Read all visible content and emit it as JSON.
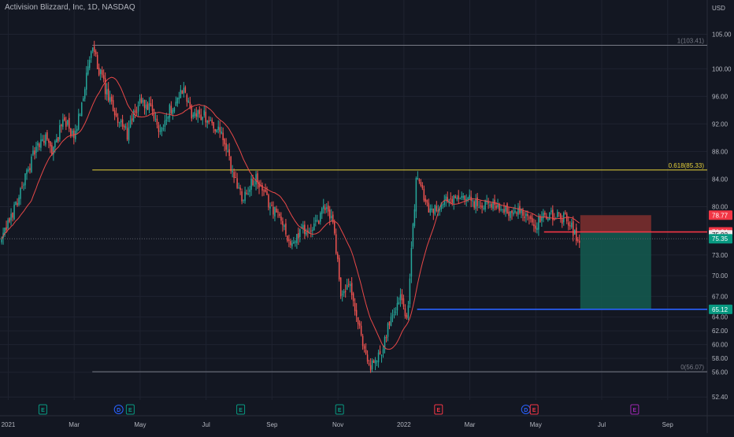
{
  "chart_data": {
    "type": "candlestick",
    "title": "Activision Blizzard, Inc, 1D, NASDAQ",
    "currency": "USD",
    "ylim": [
      50.6,
      108.6
    ],
    "y_ticks": [
      "105.00",
      "100.00",
      "96.00",
      "92.00",
      "88.00",
      "84.00",
      "80.00",
      "73.00",
      "70.00",
      "67.00",
      "64.00",
      "62.00",
      "60.00",
      "58.00",
      "56.00",
      "52.40"
    ],
    "x_ticks": [
      {
        "label": "2021",
        "m": 0.0
      },
      {
        "label": "Mar",
        "m": 2.0
      },
      {
        "label": "May",
        "m": 4.0
      },
      {
        "label": "Jul",
        "m": 6.0
      },
      {
        "label": "Sep",
        "m": 8.0
      },
      {
        "label": "Nov",
        "m": 10.0
      },
      {
        "label": "2022",
        "m": 12.0
      },
      {
        "label": "Mar",
        "m": 14.0
      },
      {
        "label": "May",
        "m": 16.0
      },
      {
        "label": "Jul",
        "m": 18.0
      },
      {
        "label": "Sep",
        "m": 20.0
      }
    ],
    "x_range_months": [
      -0.25,
      21.2
    ],
    "price_path": [
      [
        -0.2,
        75.0
      ],
      [
        0.2,
        80.0
      ],
      [
        0.5,
        84.0
      ],
      [
        0.8,
        88.0
      ],
      [
        1.1,
        90.0
      ],
      [
        1.35,
        88.0
      ],
      [
        1.7,
        93.0
      ],
      [
        2.0,
        89.5
      ],
      [
        2.3,
        97.0
      ],
      [
        2.55,
        103.0
      ],
      [
        2.75,
        100.0
      ],
      [
        3.0,
        96.0
      ],
      [
        3.3,
        93.0
      ],
      [
        3.6,
        90.5
      ],
      [
        4.0,
        95.5
      ],
      [
        4.3,
        94.0
      ],
      [
        4.6,
        91.0
      ],
      [
        4.9,
        94.0
      ],
      [
        5.3,
        97.0
      ],
      [
        5.6,
        93.0
      ],
      [
        5.9,
        93.5
      ],
      [
        6.2,
        92.0
      ],
      [
        6.5,
        90.0
      ],
      [
        6.8,
        85.0
      ],
      [
        7.1,
        81.5
      ],
      [
        7.5,
        84.0
      ],
      [
        7.9,
        80.5
      ],
      [
        8.3,
        78.0
      ],
      [
        8.6,
        74.0
      ],
      [
        8.9,
        77.0
      ],
      [
        9.2,
        76.0
      ],
      [
        9.6,
        80.0
      ],
      [
        9.85,
        78.0
      ],
      [
        10.1,
        67.0
      ],
      [
        10.35,
        68.5
      ],
      [
        10.7,
        61.0
      ],
      [
        11.0,
        56.5
      ],
      [
        11.3,
        59.0
      ],
      [
        11.6,
        64.0
      ],
      [
        11.9,
        67.0
      ],
      [
        12.1,
        64.0
      ],
      [
        12.4,
        85.5
      ],
      [
        12.55,
        82.0
      ],
      [
        12.8,
        79.5
      ],
      [
        13.1,
        80.5
      ],
      [
        13.5,
        81.0
      ],
      [
        13.9,
        81.0
      ],
      [
        14.3,
        80.2
      ],
      [
        14.7,
        80.5
      ],
      [
        15.1,
        79.5
      ],
      [
        15.5,
        79.2
      ],
      [
        15.8,
        77.8
      ],
      [
        16.0,
        77.5
      ],
      [
        16.3,
        79.0
      ],
      [
        16.7,
        78.5
      ],
      [
        17.0,
        78.0
      ],
      [
        17.2,
        76.0
      ],
      [
        17.35,
        75.35
      ]
    ],
    "moving_average_color": "#e84848",
    "fib_levels": [
      {
        "label": "1(103.41)",
        "value": 103.41,
        "color": "#787b86"
      },
      {
        "label": "0.618(85.33)",
        "value": 85.33,
        "color": "#e8d33a"
      },
      {
        "label": "0(56.07)",
        "value": 56.07,
        "color": "#787b86"
      }
    ],
    "fib_start_m": 2.55,
    "position": {
      "type": "short",
      "stop": 78.77,
      "entry": 76.34,
      "target": 65.12,
      "start_m": 17.35,
      "end_m": 19.5,
      "stop_fill": "#7a2e2e",
      "target_fill": "#14584e"
    },
    "price_labels": [
      {
        "text": "78.77",
        "value": 78.77,
        "bg": "#f23645",
        "fg": "#ffffff"
      },
      {
        "text": "76.34",
        "value": 76.34,
        "bg": "#f23645",
        "fg": "#ffffff"
      },
      {
        "text": "75.92",
        "value": 75.92,
        "bg": "#e9e9ea",
        "fg": "#131722"
      },
      {
        "text": "75.35",
        "value": 75.35,
        "bg": "#089981",
        "fg": "#ffffff"
      },
      {
        "text": "65.12",
        "value": 65.12,
        "bg": "#089981",
        "fg": "#ffffff"
      }
    ],
    "blue_line": {
      "value": 65.12,
      "start_m": 12.4,
      "color": "#2962ff"
    },
    "red_line": {
      "value": 76.34,
      "start_m": 16.25,
      "color": "#f23645"
    },
    "current_price": 75.35,
    "events": [
      {
        "letter": "E",
        "m": 1.05,
        "color": "#089981"
      },
      {
        "letter": "D",
        "m": 3.35,
        "color": "#2962ff"
      },
      {
        "letter": "E",
        "m": 3.7,
        "color": "#089981"
      },
      {
        "letter": "E",
        "m": 7.05,
        "color": "#089981"
      },
      {
        "letter": "E",
        "m": 10.05,
        "color": "#089981"
      },
      {
        "letter": "E",
        "m": 13.05,
        "color": "#f23645"
      },
      {
        "letter": "D",
        "m": 15.7,
        "color": "#2962ff"
      },
      {
        "letter": "E",
        "m": 15.95,
        "color": "#f23645"
      },
      {
        "letter": "E",
        "m": 19.0,
        "color": "#9c27b0"
      }
    ]
  }
}
